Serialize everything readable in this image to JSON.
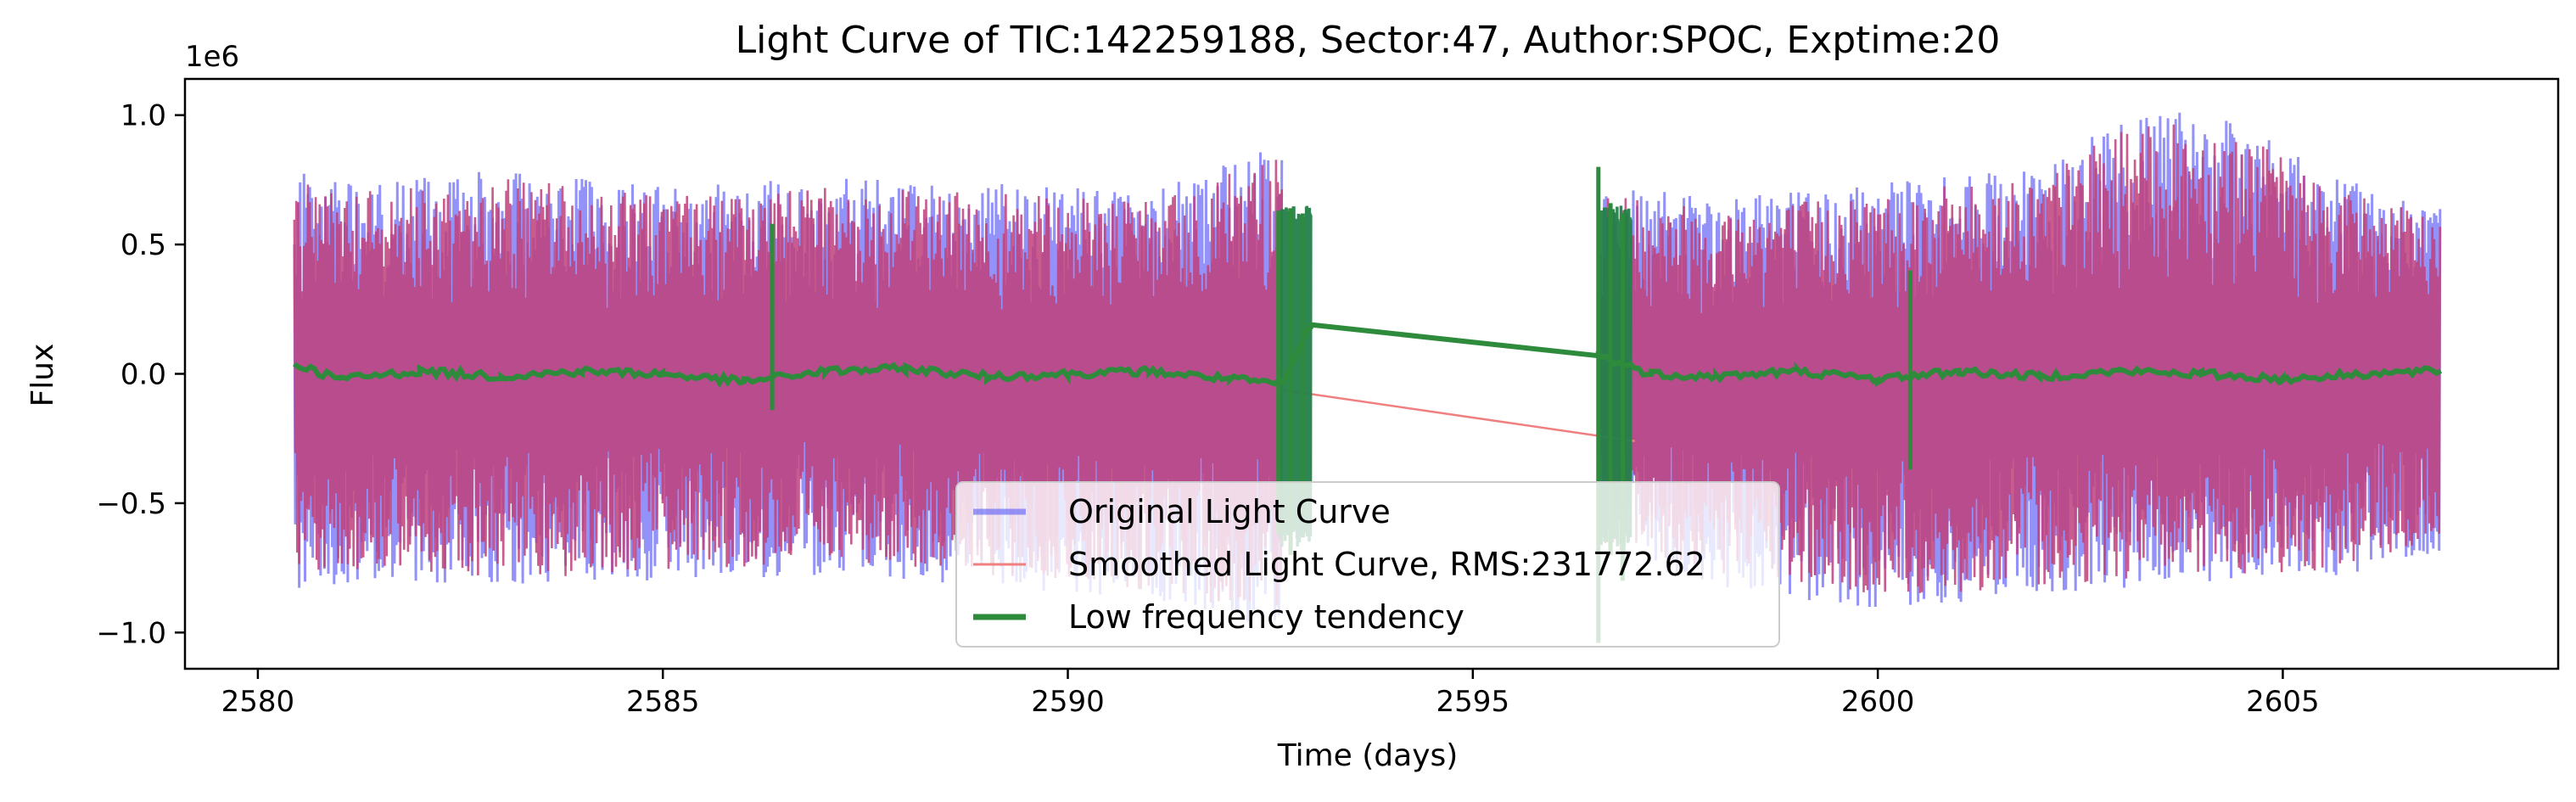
{
  "chart_data": {
    "type": "line",
    "title": "Light Curve of TIC:142259188, Sector:47, Author:SPOC, Exptime:20",
    "xlabel": "Time (days)",
    "ylabel": "Flux",
    "y_multiplier_label": "1e6",
    "xlim": [
      2579.1,
      2608.4
    ],
    "ylim": [
      -1.14,
      1.14
    ],
    "x_ticks": [
      2580,
      2585,
      2590,
      2595,
      2600,
      2605
    ],
    "x_tick_labels": [
      "2580",
      "2585",
      "2590",
      "2595",
      "2600",
      "2605"
    ],
    "y_ticks": [
      -1.0,
      -0.5,
      0.0,
      0.5,
      1.0
    ],
    "y_tick_labels": [
      "−1.0",
      "−0.5",
      "0.0",
      "0.5",
      "1.0"
    ],
    "grid": false,
    "legend_position": "lower-center",
    "segments": [
      [
        2580.45,
        2592.65
      ],
      [
        2596.55,
        2606.95
      ]
    ],
    "series": [
      {
        "name": "Original Light Curve",
        "color": "#6e6ef5",
        "envelope_upper": [
          [
            2580.45,
            0.78
          ],
          [
            2581.5,
            0.74
          ],
          [
            2583.0,
            0.8
          ],
          [
            2585.0,
            0.72
          ],
          [
            2587.0,
            0.76
          ],
          [
            2589.0,
            0.74
          ],
          [
            2591.0,
            0.7
          ],
          [
            2592.5,
            0.88
          ],
          [
            2596.6,
            0.75
          ],
          [
            2598.0,
            0.68
          ],
          [
            2600.0,
            0.74
          ],
          [
            2602.0,
            0.8
          ],
          [
            2603.0,
            1.0
          ],
          [
            2604.3,
            1.03
          ],
          [
            2605.5,
            0.78
          ],
          [
            2606.9,
            0.64
          ]
        ],
        "envelope_lower": [
          [
            2580.45,
            -0.84
          ],
          [
            2581.5,
            -0.8
          ],
          [
            2583.0,
            -0.84
          ],
          [
            2585.0,
            -0.8
          ],
          [
            2587.0,
            -0.78
          ],
          [
            2589.0,
            -0.82
          ],
          [
            2591.0,
            -0.88
          ],
          [
            2592.5,
            -0.98
          ],
          [
            2596.6,
            -0.7
          ],
          [
            2598.0,
            -0.82
          ],
          [
            2600.0,
            -0.92
          ],
          [
            2602.0,
            -0.86
          ],
          [
            2604.0,
            -0.82
          ],
          [
            2605.5,
            -0.8
          ],
          [
            2606.9,
            -0.7
          ]
        ]
      },
      {
        "name": "Smoothed Light Curve, RMS:231772.62",
        "color": "#f08080",
        "gap_line": [
          [
            2592.6,
            -0.06
          ],
          [
            2597.0,
            -0.26
          ]
        ]
      },
      {
        "name": "Low frequency tendency",
        "color": "#2e8b3c",
        "trend": [
          [
            2580.45,
            0.04
          ],
          [
            2581.0,
            -0.02
          ],
          [
            2582.0,
            0.01
          ],
          [
            2583.0,
            -0.01
          ],
          [
            2584.0,
            0.01
          ],
          [
            2585.0,
            0.0
          ],
          [
            2586.0,
            -0.03
          ],
          [
            2587.0,
            0.01
          ],
          [
            2588.0,
            0.02
          ],
          [
            2589.0,
            -0.01
          ],
          [
            2590.0,
            0.0
          ],
          [
            2591.0,
            0.01
          ],
          [
            2592.0,
            -0.02
          ],
          [
            2592.65,
            -0.04
          ],
          [
            2593.0,
            0.19
          ],
          [
            2596.55,
            0.07
          ],
          [
            2597.2,
            0.0
          ],
          [
            2598.0,
            -0.01
          ],
          [
            2599.0,
            0.01
          ],
          [
            2600.0,
            -0.02
          ],
          [
            2601.0,
            0.01
          ],
          [
            2602.0,
            -0.01
          ],
          [
            2603.0,
            0.01
          ],
          [
            2604.0,
            0.0
          ],
          [
            2605.0,
            -0.02
          ],
          [
            2606.0,
            0.0
          ],
          [
            2606.95,
            0.01
          ]
        ],
        "spikes": [
          [
            2586.35,
            -0.14,
            0.58
          ],
          [
            2592.6,
            -0.62,
            0.63
          ],
          [
            2592.75,
            -0.7,
            0.64
          ],
          [
            2592.9,
            -0.55,
            0.62
          ],
          [
            2596.55,
            -1.04,
            0.8
          ],
          [
            2596.7,
            -0.7,
            0.66
          ],
          [
            2596.85,
            -0.8,
            0.62
          ],
          [
            2600.4,
            -0.37,
            0.4
          ]
        ]
      }
    ]
  }
}
